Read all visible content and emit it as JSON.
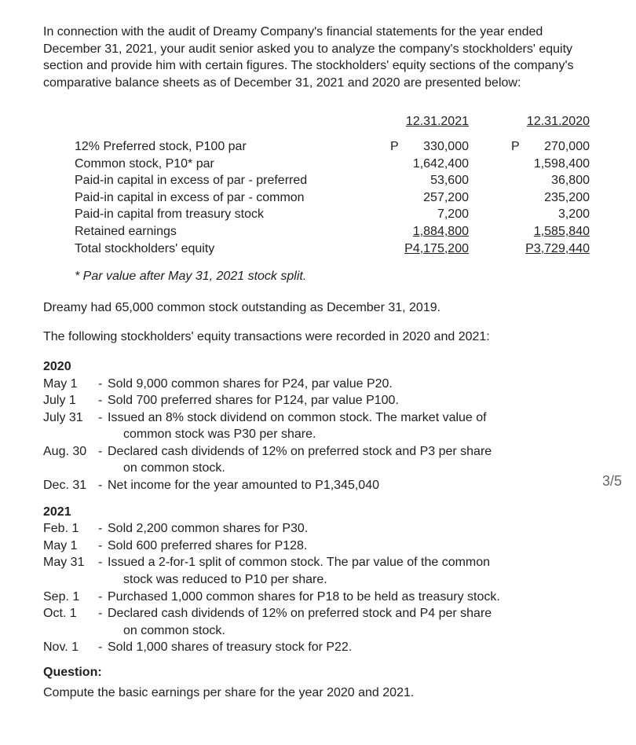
{
  "intro": "In connection with the audit of Dreamy Company's financial statements for the year ended December 31, 2021, your audit senior asked you to analyze the company's stockholders' equity section and provide him with certain figures. The stockholders' equity sections of the company's comparative balance sheets as of December 31, 2021 and 2020 are presented below:",
  "headers": {
    "c2021": "12.31.2021",
    "c2020": "12.31.2020"
  },
  "rows": [
    {
      "label": "12% Preferred stock, P100 par",
      "v2021": "330,000",
      "v2020": "270,000",
      "prefix": true
    },
    {
      "label": "Common stock, P10* par",
      "v2021": "1,642,400",
      "v2020": "1,598,400"
    },
    {
      "label": "Paid-in capital in excess of par - preferred",
      "v2021": "53,600",
      "v2020": "36,800"
    },
    {
      "label": "Paid-in capital in excess of par - common",
      "v2021": "257,200",
      "v2020": "235,200"
    },
    {
      "label": "Paid-in capital from treasury stock",
      "v2021": "7,200",
      "v2020": "3,200"
    },
    {
      "label": "Retained earnings",
      "v2021": "1,884,800",
      "v2020": "1,585,840",
      "underline": true
    },
    {
      "label": "Total stockholders' equity",
      "v2021": "P4,175,200",
      "v2020": "P3,729,440",
      "underline": true
    }
  ],
  "footnote": "* Par value after May 31, 2021 stock split.",
  "p_out": "Dreamy had 65,000 common stock outstanding as December 31, 2019.",
  "p_trans": "The following stockholders' equity transactions were recorded in 2020 and 2021:",
  "y2020": "2020",
  "y2021": "2021",
  "t2020": [
    {
      "date": "May 1",
      "desc": "Sold 9,000 common shares for P24, par value P20."
    },
    {
      "date": "July 1",
      "desc": "Sold 700 preferred shares for P124, par value P100."
    },
    {
      "date": "July 31",
      "desc": "Issued an 8% stock dividend on common stock. The market value of",
      "cont": "common stock was P30 per share."
    },
    {
      "date": "Aug. 30",
      "desc": "Declared cash dividends of 12% on preferred stock and P3 per share",
      "cont": "on common stock."
    },
    {
      "date": "Dec. 31",
      "desc": "Net income for the year amounted to P1,345,040"
    }
  ],
  "t2021": [
    {
      "date": "Feb. 1",
      "desc": "Sold 2,200 common shares for P30."
    },
    {
      "date": "May 1",
      "desc": "Sold 600 preferred shares for P128."
    },
    {
      "date": "May 31",
      "desc": "Issued a 2-for-1 split of common stock. The par value of the common",
      "cont": "stock was reduced to P10 per share."
    },
    {
      "date": "Sep. 1",
      "desc": "Purchased 1,000 common shares for P18 to be held as treasury stock."
    },
    {
      "date": "Oct. 1",
      "desc": "Declared cash dividends of 12% on preferred stock and P4 per share",
      "cont": "on common stock."
    },
    {
      "date": "Nov. 1",
      "desc": "Sold 1,000 shares of treasury stock for P22."
    }
  ],
  "q_label": "Question:",
  "q_text": "Compute the basic earnings per share for the year 2020 and 2021.",
  "badge": "3/5"
}
